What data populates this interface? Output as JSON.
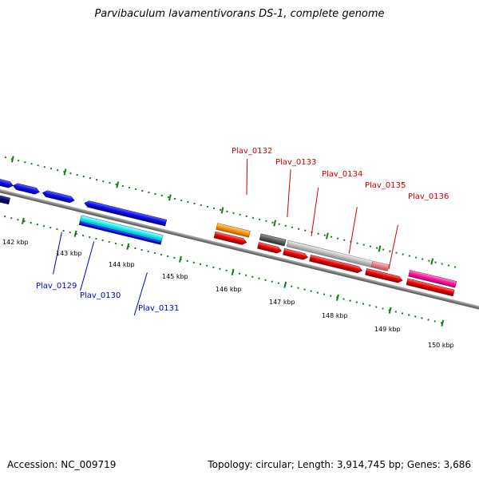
{
  "title": "Parvibaculum lavamentivorans DS-1, complete genome",
  "footer": {
    "accession": "Accession: NC_009719",
    "stats": "Topology: circular; Length: 3,914,745 bp; Genes: 3,686"
  },
  "scale_labels": [
    "142 kbp",
    "143 kbp",
    "144 kbp",
    "145 kbp",
    "146 kbp",
    "147 kbp",
    "148 kbp",
    "149 kbp",
    "150 kbp"
  ],
  "gene_labels_top": [
    "Plav_0132",
    "Plav_0133",
    "Plav_0134",
    "Plav_0135",
    "Plav_0136"
  ],
  "gene_labels_bottom": [
    "Plav_0129",
    "Plav_0130",
    "Plav_0131"
  ],
  "colors": {
    "top_label": "#cc0000",
    "bottom_label": "#0000cc",
    "tick": "#1a7a1a",
    "backbone": "#808080"
  }
}
